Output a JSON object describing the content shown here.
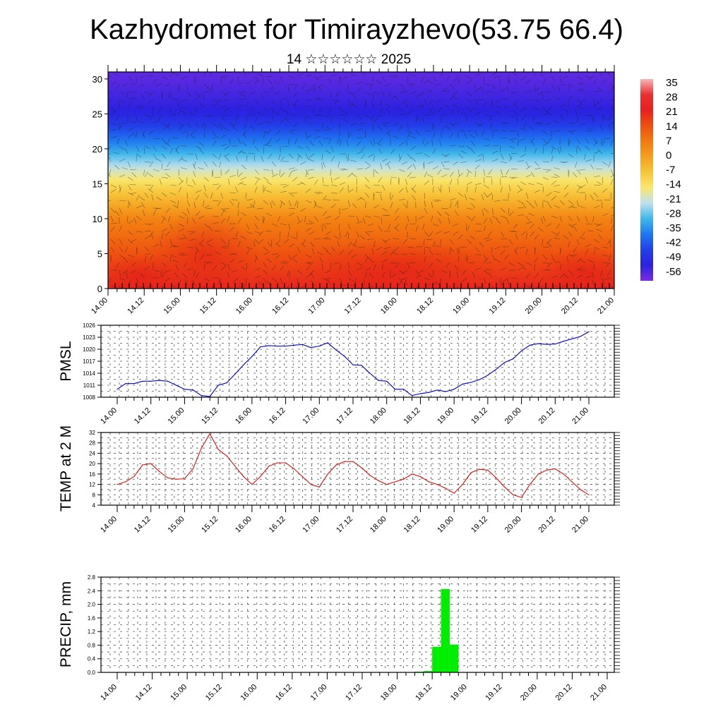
{
  "title": "Kazhydromet for Timirayzhevo(53.75 66.4)",
  "subtitle": "14 ☆☆☆☆☆☆ 2025",
  "time_ticks": [
    "14.00",
    "14.12",
    "15.00",
    "15.12",
    "16.00",
    "16.12",
    "17.00",
    "17.12",
    "18.00",
    "18.12",
    "19.00",
    "19.12",
    "20.00",
    "20.12",
    "21.00"
  ],
  "chart_data": [
    {
      "type": "heatmap",
      "name": "cross-section",
      "xlabel": "",
      "ylabel": "",
      "x_ticks": [
        "14.00",
        "14.12",
        "15.00",
        "15.12",
        "16.00",
        "16.12",
        "17.00",
        "17.12",
        "18.00",
        "18.12",
        "19.00",
        "19.12",
        "20.00",
        "20.12",
        "21.00"
      ],
      "y_ticks": [
        0,
        5,
        10,
        15,
        20,
        25,
        30
      ],
      "ylim": [
        0,
        31
      ],
      "colorbar_labels": [
        "35",
        "28",
        "21",
        "14",
        "7",
        "0",
        "-7",
        "-14",
        "-21",
        "-28",
        "-35",
        "-42",
        "-49",
        "-56"
      ],
      "colorbar_colors": [
        "#f7b6b6",
        "#e83030",
        "#e62020",
        "#ee5010",
        "#f27a10",
        "#f5a020",
        "#f7c63a",
        "#f9e870",
        "#bfe0ef",
        "#3fb8ea",
        "#1e78f0",
        "#2240e8",
        "#2a22e0",
        "#7c2ee0"
      ],
      "colorbar_range": [
        -60,
        38
      ],
      "temperature_profile": {
        "heights": [
          0,
          5,
          10,
          15,
          20,
          25,
          30
        ],
        "temperatures": [
          22,
          15,
          6,
          -12,
          -33,
          -52,
          -57
        ]
      }
    },
    {
      "type": "line",
      "name": "pmsl",
      "ylabel": "PMSL",
      "y_ticks": [
        1008,
        1011,
        1014,
        1017,
        1020,
        1023,
        1026
      ],
      "ylim": [
        1008,
        1026
      ],
      "color": "#0000cc",
      "x": [
        0,
        3,
        6,
        9,
        12,
        15,
        18,
        21,
        24,
        27,
        30,
        33,
        36,
        39,
        42,
        45,
        48,
        51,
        54,
        57,
        60,
        63,
        66,
        69,
        72,
        75,
        78,
        81,
        84,
        87,
        90,
        93,
        96,
        99,
        102,
        105,
        108,
        111,
        114,
        117,
        120,
        123,
        126,
        129,
        132,
        135,
        138,
        141,
        144,
        147,
        150,
        153,
        156,
        159,
        162,
        165,
        168
      ],
      "series": [
        {
          "name": "PMSL",
          "values": [
            1010,
            1011.4,
            1011.4,
            1012,
            1012,
            1012.2,
            1012,
            1011,
            1010,
            1009.8,
            1008.4,
            1008.2,
            1011,
            1011.6,
            1013.8,
            1016.1,
            1018.2,
            1020.6,
            1020.9,
            1020.8,
            1020.8,
            1021,
            1021.2,
            1020.4,
            1020.8,
            1021.6,
            1019.8,
            1018.2,
            1016.1,
            1016,
            1014,
            1012.2,
            1012,
            1010,
            1010,
            1008.4,
            1008.9,
            1009.2,
            1009.8,
            1009.4,
            1010,
            1011.3,
            1011.7,
            1012.4,
            1013.5,
            1015,
            1016.7,
            1017.6,
            1019.6,
            1021,
            1021.4,
            1021.2,
            1021.3,
            1022,
            1022.6,
            1023.2,
            1024.4
          ]
        }
      ]
    },
    {
      "type": "line",
      "name": "temp2m",
      "ylabel": "TEMP at 2 M",
      "y_ticks": [
        4,
        8,
        12,
        16,
        20,
        24,
        28,
        32
      ],
      "ylim": [
        4,
        32
      ],
      "color": "#e01010",
      "x": [
        0,
        3,
        6,
        9,
        12,
        15,
        18,
        21,
        24,
        27,
        30,
        33,
        36,
        39,
        42,
        45,
        48,
        51,
        54,
        57,
        60,
        63,
        66,
        69,
        72,
        75,
        78,
        81,
        84,
        87,
        90,
        93,
        96,
        99,
        102,
        105,
        108,
        111,
        114,
        117,
        120,
        123,
        126,
        129,
        132,
        135,
        138,
        141,
        144,
        147,
        150,
        153,
        156,
        159,
        162,
        165,
        168
      ],
      "series": [
        {
          "name": "TEMP at 2 M",
          "values": [
            12,
            13,
            15,
            19.5,
            20,
            17,
            14.5,
            14,
            14.2,
            18,
            26,
            31.5,
            25.5,
            23,
            19,
            15,
            12,
            15,
            19,
            20.3,
            20.3,
            18,
            15,
            12,
            11,
            16,
            19.5,
            20.8,
            20.8,
            18.5,
            15.5,
            13.5,
            12,
            13,
            14,
            16,
            15,
            13,
            12,
            10.5,
            8.6,
            12,
            16.5,
            17.8,
            17.5,
            14.5,
            11,
            8,
            7,
            12,
            16,
            17.5,
            18,
            16,
            13,
            10,
            8
          ]
        }
      ]
    },
    {
      "type": "bar",
      "name": "precip",
      "ylabel": "PRECIP, mm",
      "y_ticks": [
        "0.0",
        "0.4",
        "0.8",
        "1.2",
        "1.6",
        "2.0",
        "2.4",
        "2.8"
      ],
      "ylim": [
        0,
        2.8
      ],
      "color": "#00ee00",
      "bars": [
        {
          "start_h": 102,
          "end_h": 105,
          "value": 0.02
        },
        {
          "start_h": 105,
          "end_h": 108,
          "value": 0.04
        },
        {
          "start_h": 108,
          "end_h": 111,
          "value": 0.75
        },
        {
          "start_h": 111,
          "end_h": 114,
          "value": 2.45
        },
        {
          "start_h": 114,
          "end_h": 117,
          "value": 0.82
        }
      ]
    }
  ]
}
